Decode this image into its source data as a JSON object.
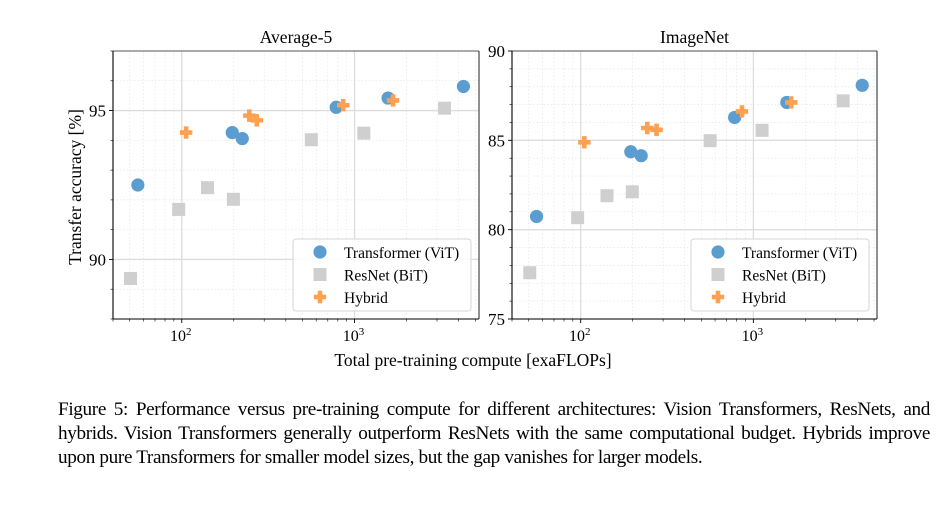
{
  "figure": {
    "xlabel": "Total pre-training compute [exaFLOPs]",
    "ylabel": "Transfer accuracy [%]",
    "caption": "Figure 5: Performance versus pre-training compute for different architectures: Vision Transformers, ResNets, and hybrids. Vision Transformers generally outperform ResNets with the same computational budget. Hybrids improve upon pure Transformers for smaller model sizes, but the gap vanishes for larger models."
  },
  "legend": [
    {
      "key": "vit",
      "label": "Transformer (ViT)",
      "marker": "circle",
      "color": "#5b9dcf"
    },
    {
      "key": "bit",
      "label": "ResNet (BiT)",
      "marker": "square",
      "color": "#cfcfcf"
    },
    {
      "key": "hybrid",
      "label": "Hybrid",
      "marker": "plus",
      "color": "#fda04f"
    }
  ],
  "chart_data": [
    {
      "type": "scatter",
      "title": "Average-5",
      "xlabel": "Total pre-training compute [exaFLOPs]",
      "ylabel": "Transfer accuracy [%]",
      "xscale": "log",
      "xlim": [
        40,
        5250
      ],
      "ylim": [
        88,
        97
      ],
      "xticks": [
        {
          "value": 100,
          "label": "10",
          "exp": "2"
        },
        {
          "value": 1000,
          "label": "10",
          "exp": "3"
        }
      ],
      "yticks": [
        90,
        95
      ],
      "grid": true,
      "legend_position": "lower-right",
      "series": [
        {
          "name": "Transformer (ViT)",
          "key": "vit",
          "x": [
            55.7,
            196,
            224,
            783,
            1563,
            4265
          ],
          "y": [
            92.5,
            94.26,
            94.06,
            95.11,
            95.42,
            95.81
          ]
        },
        {
          "name": "ResNet (BiT)",
          "key": "bit",
          "x": [
            50.5,
            96,
            141,
            199,
            562,
            1131,
            3316
          ],
          "y": [
            89.36,
            91.68,
            92.41,
            92.02,
            94.02,
            94.24,
            95.08
          ]
        },
        {
          "name": "Hybrid",
          "key": "hybrid",
          "x": [
            106,
            246,
            272,
            859,
            1670
          ],
          "y": [
            94.26,
            94.83,
            94.67,
            95.18,
            95.34
          ]
        }
      ]
    },
    {
      "type": "scatter",
      "title": "ImageNet",
      "xlabel": "Total pre-training compute [exaFLOPs]",
      "ylabel": "",
      "xscale": "log",
      "xlim": [
        40,
        5200
      ],
      "ylim": [
        75,
        90
      ],
      "xticks": [
        {
          "value": 100,
          "label": "10",
          "exp": "2"
        },
        {
          "value": 1000,
          "label": "10",
          "exp": "3"
        }
      ],
      "yticks": [
        75,
        80,
        85,
        90
      ],
      "grid": true,
      "legend_position": "lower-right",
      "series": [
        {
          "name": "Transformer (ViT)",
          "key": "vit",
          "x": [
            55.5,
            195,
            224,
            779,
            1563,
            4270
          ],
          "y": [
            80.74,
            84.36,
            84.14,
            86.28,
            87.12,
            88.08
          ]
        },
        {
          "name": "ResNet (BiT)",
          "key": "bit",
          "x": [
            50.7,
            96,
            142,
            199,
            562,
            1123,
            3313
          ],
          "y": [
            77.59,
            80.67,
            81.9,
            82.12,
            84.98,
            85.56,
            87.21
          ]
        },
        {
          "name": "Hybrid",
          "key": "hybrid",
          "x": [
            105,
            243,
            275,
            859,
            1657
          ],
          "y": [
            84.89,
            85.69,
            85.59,
            86.62,
            87.12
          ]
        }
      ]
    }
  ]
}
